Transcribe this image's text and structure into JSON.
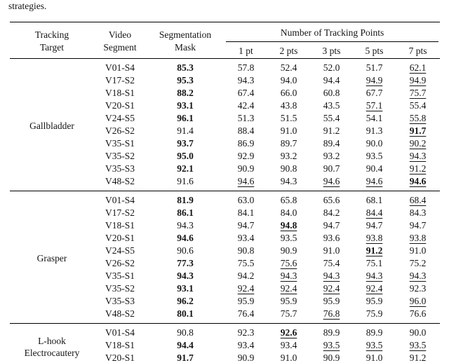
{
  "caption_fragment": "strategies.",
  "table": {
    "header": {
      "target_lines": [
        "Tracking",
        "Target"
      ],
      "segment_lines": [
        "Video",
        "Segment"
      ],
      "mask_lines": [
        "Segmentation",
        "Mask"
      ],
      "points_group": "Number of Tracking Points",
      "point_cols": [
        "1 pt",
        "2 pts",
        "3 pts",
        "5 pts",
        "7 pts"
      ]
    },
    "groups": [
      {
        "target_lines": [
          "Gallbladder"
        ],
        "rows": [
          {
            "segment": "V01-S4",
            "mask": {
              "v": "85.3",
              "s": "b"
            },
            "points": [
              {
                "v": "57.8",
                "s": ""
              },
              {
                "v": "52.4",
                "s": ""
              },
              {
                "v": "52.0",
                "s": ""
              },
              {
                "v": "51.7",
                "s": ""
              },
              {
                "v": "62.1",
                "s": "u"
              }
            ]
          },
          {
            "segment": "V17-S2",
            "mask": {
              "v": "95.3",
              "s": "b"
            },
            "points": [
              {
                "v": "94.3",
                "s": ""
              },
              {
                "v": "94.0",
                "s": ""
              },
              {
                "v": "94.4",
                "s": ""
              },
              {
                "v": "94.9",
                "s": "u"
              },
              {
                "v": "94.9",
                "s": "u"
              }
            ]
          },
          {
            "segment": "V18-S1",
            "mask": {
              "v": "88.2",
              "s": "b"
            },
            "points": [
              {
                "v": "67.4",
                "s": ""
              },
              {
                "v": "66.0",
                "s": ""
              },
              {
                "v": "60.8",
                "s": ""
              },
              {
                "v": "67.7",
                "s": ""
              },
              {
                "v": "75.7",
                "s": "u"
              }
            ]
          },
          {
            "segment": "V20-S1",
            "mask": {
              "v": "93.1",
              "s": "b"
            },
            "points": [
              {
                "v": "42.4",
                "s": ""
              },
              {
                "v": "43.8",
                "s": ""
              },
              {
                "v": "43.5",
                "s": ""
              },
              {
                "v": "57.1",
                "s": "u"
              },
              {
                "v": "55.4",
                "s": ""
              }
            ]
          },
          {
            "segment": "V24-S5",
            "mask": {
              "v": "96.1",
              "s": "b"
            },
            "points": [
              {
                "v": "51.3",
                "s": ""
              },
              {
                "v": "51.5",
                "s": ""
              },
              {
                "v": "55.4",
                "s": ""
              },
              {
                "v": "54.1",
                "s": ""
              },
              {
                "v": "55.8",
                "s": "u"
              }
            ]
          },
          {
            "segment": "V26-S2",
            "mask": {
              "v": "91.4",
              "s": ""
            },
            "points": [
              {
                "v": "88.4",
                "s": ""
              },
              {
                "v": "91.0",
                "s": ""
              },
              {
                "v": "91.2",
                "s": ""
              },
              {
                "v": "91.3",
                "s": ""
              },
              {
                "v": "91.7",
                "s": "bu"
              }
            ]
          },
          {
            "segment": "V35-S1",
            "mask": {
              "v": "93.7",
              "s": "b"
            },
            "points": [
              {
                "v": "86.9",
                "s": ""
              },
              {
                "v": "89.7",
                "s": ""
              },
              {
                "v": "89.4",
                "s": ""
              },
              {
                "v": "90.0",
                "s": ""
              },
              {
                "v": "90.2",
                "s": "u"
              }
            ]
          },
          {
            "segment": "V35-S2",
            "mask": {
              "v": "95.0",
              "s": "b"
            },
            "points": [
              {
                "v": "92.9",
                "s": ""
              },
              {
                "v": "93.2",
                "s": ""
              },
              {
                "v": "93.2",
                "s": ""
              },
              {
                "v": "93.5",
                "s": ""
              },
              {
                "v": "94.3",
                "s": "u"
              }
            ]
          },
          {
            "segment": "V35-S3",
            "mask": {
              "v": "92.1",
              "s": "b"
            },
            "points": [
              {
                "v": "90.9",
                "s": ""
              },
              {
                "v": "90.8",
                "s": ""
              },
              {
                "v": "90.7",
                "s": ""
              },
              {
                "v": "90.4",
                "s": ""
              },
              {
                "v": "91.2",
                "s": "u"
              }
            ]
          },
          {
            "segment": "V48-S2",
            "mask": {
              "v": "91.6",
              "s": ""
            },
            "points": [
              {
                "v": "94.6",
                "s": "u"
              },
              {
                "v": "94.3",
                "s": ""
              },
              {
                "v": "94.6",
                "s": "u"
              },
              {
                "v": "94.6",
                "s": "u"
              },
              {
                "v": "94.6",
                "s": "bu"
              }
            ]
          }
        ]
      },
      {
        "target_lines": [
          "Grasper"
        ],
        "rows": [
          {
            "segment": "V01-S4",
            "mask": {
              "v": "81.9",
              "s": "b"
            },
            "points": [
              {
                "v": "63.0",
                "s": ""
              },
              {
                "v": "65.8",
                "s": ""
              },
              {
                "v": "65.6",
                "s": ""
              },
              {
                "v": "68.1",
                "s": ""
              },
              {
                "v": "68.4",
                "s": "u"
              }
            ]
          },
          {
            "segment": "V17-S2",
            "mask": {
              "v": "86.1",
              "s": "b"
            },
            "points": [
              {
                "v": "84.1",
                "s": ""
              },
              {
                "v": "84.0",
                "s": ""
              },
              {
                "v": "84.2",
                "s": ""
              },
              {
                "v": "84.4",
                "s": "u"
              },
              {
                "v": "84.3",
                "s": ""
              }
            ]
          },
          {
            "segment": "V18-S1",
            "mask": {
              "v": "94.3",
              "s": ""
            },
            "points": [
              {
                "v": "94.7",
                "s": ""
              },
              {
                "v": "94.8",
                "s": "bu"
              },
              {
                "v": "94.7",
                "s": ""
              },
              {
                "v": "94.7",
                "s": ""
              },
              {
                "v": "94.7",
                "s": ""
              }
            ]
          },
          {
            "segment": "V20-S1",
            "mask": {
              "v": "94.6",
              "s": "b"
            },
            "points": [
              {
                "v": "93.4",
                "s": ""
              },
              {
                "v": "93.5",
                "s": ""
              },
              {
                "v": "93.6",
                "s": ""
              },
              {
                "v": "93.8",
                "s": "u"
              },
              {
                "v": "93.8",
                "s": "u"
              }
            ]
          },
          {
            "segment": "V24-S5",
            "mask": {
              "v": "90.6",
              "s": ""
            },
            "points": [
              {
                "v": "90.8",
                "s": ""
              },
              {
                "v": "90.9",
                "s": ""
              },
              {
                "v": "91.0",
                "s": ""
              },
              {
                "v": "91.2",
                "s": "bu"
              },
              {
                "v": "91.0",
                "s": ""
              }
            ]
          },
          {
            "segment": "V26-S2",
            "mask": {
              "v": "77.3",
              "s": "b"
            },
            "points": [
              {
                "v": "75.5",
                "s": ""
              },
              {
                "v": "75.6",
                "s": "u"
              },
              {
                "v": "75.4",
                "s": ""
              },
              {
                "v": "75.1",
                "s": ""
              },
              {
                "v": "75.2",
                "s": ""
              }
            ]
          },
          {
            "segment": "V35-S1",
            "mask": {
              "v": "94.3",
              "s": "b"
            },
            "points": [
              {
                "v": "94.2",
                "s": ""
              },
              {
                "v": "94.3",
                "s": "u"
              },
              {
                "v": "94.3",
                "s": "u"
              },
              {
                "v": "94.3",
                "s": "u"
              },
              {
                "v": "94.3",
                "s": "u"
              }
            ]
          },
          {
            "segment": "V35-S2",
            "mask": {
              "v": "93.1",
              "s": "b"
            },
            "points": [
              {
                "v": "92.4",
                "s": "u"
              },
              {
                "v": "92.4",
                "s": "u"
              },
              {
                "v": "92.4",
                "s": "u"
              },
              {
                "v": "92.4",
                "s": "u"
              },
              {
                "v": "92.3",
                "s": ""
              }
            ]
          },
          {
            "segment": "V35-S3",
            "mask": {
              "v": "96.2",
              "s": "b"
            },
            "points": [
              {
                "v": "95.9",
                "s": ""
              },
              {
                "v": "95.9",
                "s": ""
              },
              {
                "v": "95.9",
                "s": ""
              },
              {
                "v": "95.9",
                "s": ""
              },
              {
                "v": "96.0",
                "s": "u"
              }
            ]
          },
          {
            "segment": "V48-S2",
            "mask": {
              "v": "80.1",
              "s": "b"
            },
            "points": [
              {
                "v": "76.4",
                "s": ""
              },
              {
                "v": "75.7",
                "s": ""
              },
              {
                "v": "76.8",
                "s": "u"
              },
              {
                "v": "75.9",
                "s": ""
              },
              {
                "v": "76.6",
                "s": ""
              }
            ]
          }
        ]
      },
      {
        "target_lines": [
          "L-hook",
          "Electrocautery"
        ],
        "rows": [
          {
            "segment": "V01-S4",
            "mask": {
              "v": "90.8",
              "s": ""
            },
            "points": [
              {
                "v": "92.3",
                "s": ""
              },
              {
                "v": "92.6",
                "s": "bu"
              },
              {
                "v": "89.9",
                "s": ""
              },
              {
                "v": "89.9",
                "s": ""
              },
              {
                "v": "90.0",
                "s": ""
              }
            ]
          },
          {
            "segment": "V18-S1",
            "mask": {
              "v": "94.4",
              "s": "b"
            },
            "points": [
              {
                "v": "93.4",
                "s": ""
              },
              {
                "v": "93.4",
                "s": ""
              },
              {
                "v": "93.5",
                "s": "u"
              },
              {
                "v": "93.5",
                "s": "u"
              },
              {
                "v": "93.5",
                "s": "u"
              }
            ]
          },
          {
            "segment": "V20-S1",
            "mask": {
              "v": "91.7",
              "s": "b"
            },
            "points": [
              {
                "v": "90.9",
                "s": ""
              },
              {
                "v": "91.0",
                "s": ""
              },
              {
                "v": "90.9",
                "s": ""
              },
              {
                "v": "91.0",
                "s": ""
              },
              {
                "v": "91.2",
                "s": "u"
              }
            ]
          }
        ]
      }
    ]
  }
}
